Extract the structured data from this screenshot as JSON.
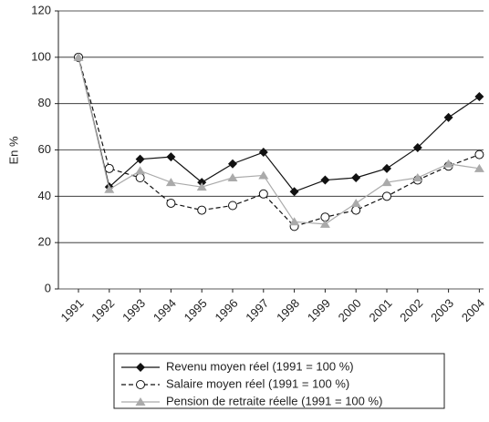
{
  "chart_data": {
    "type": "line",
    "y_label": "En %",
    "categories": [
      "1991",
      "1992",
      "1993",
      "1994",
      "1995",
      "1996",
      "1997",
      "1998",
      "1999",
      "2000",
      "2001",
      "2002",
      "2003",
      "2004"
    ],
    "ylim": [
      0,
      120
    ],
    "yticks": [
      0,
      20,
      40,
      60,
      80,
      100,
      120
    ],
    "grid": true,
    "legend": "bottom",
    "series": [
      {
        "name": "Revenu moyen réel (1991 = 100 %)",
        "color": "#111111",
        "marker": "diamond",
        "dash": false,
        "values": [
          100,
          44,
          56,
          57,
          46,
          54,
          59,
          42,
          47,
          48,
          52,
          61,
          74,
          83
        ]
      },
      {
        "name": "Salaire moyen réel (1991 = 100 %)",
        "color": "#111111",
        "marker": "circle",
        "dash": true,
        "values": [
          100,
          52,
          48,
          37,
          34,
          36,
          41,
          27,
          31,
          34,
          40,
          47,
          53,
          58
        ]
      },
      {
        "name": "Pension de retraite réelle (1991 = 100 %)",
        "color": "#aaaaaa",
        "marker": "triangle",
        "dash": false,
        "values": [
          100,
          43,
          51,
          46,
          44,
          48,
          49,
          29,
          28,
          37,
          46,
          48,
          54,
          52
        ]
      }
    ]
  }
}
